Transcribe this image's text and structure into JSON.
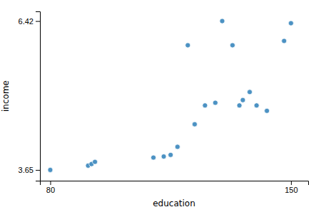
{
  "chart_data": {
    "type": "scatter",
    "x": [
      80,
      91,
      92,
      93,
      110,
      113,
      115,
      117,
      120,
      122,
      125,
      128,
      130,
      133,
      135,
      136,
      138,
      140,
      143,
      148,
      150
    ],
    "y": [
      3.65,
      3.73,
      3.76,
      3.8,
      3.88,
      3.9,
      3.93,
      4.08,
      5.97,
      4.5,
      4.85,
      4.9,
      6.42,
      5.97,
      4.85,
      4.95,
      5.1,
      4.85,
      4.75,
      6.05,
      6.38
    ],
    "xlabel": "education",
    "ylabel": "income",
    "xlim": [
      77,
      155
    ],
    "ylim": [
      3.45,
      6.6
    ],
    "xticks": [
      80,
      150
    ],
    "yticks": [
      3.65,
      6.42
    ],
    "marker": "circle",
    "grid": false
  }
}
